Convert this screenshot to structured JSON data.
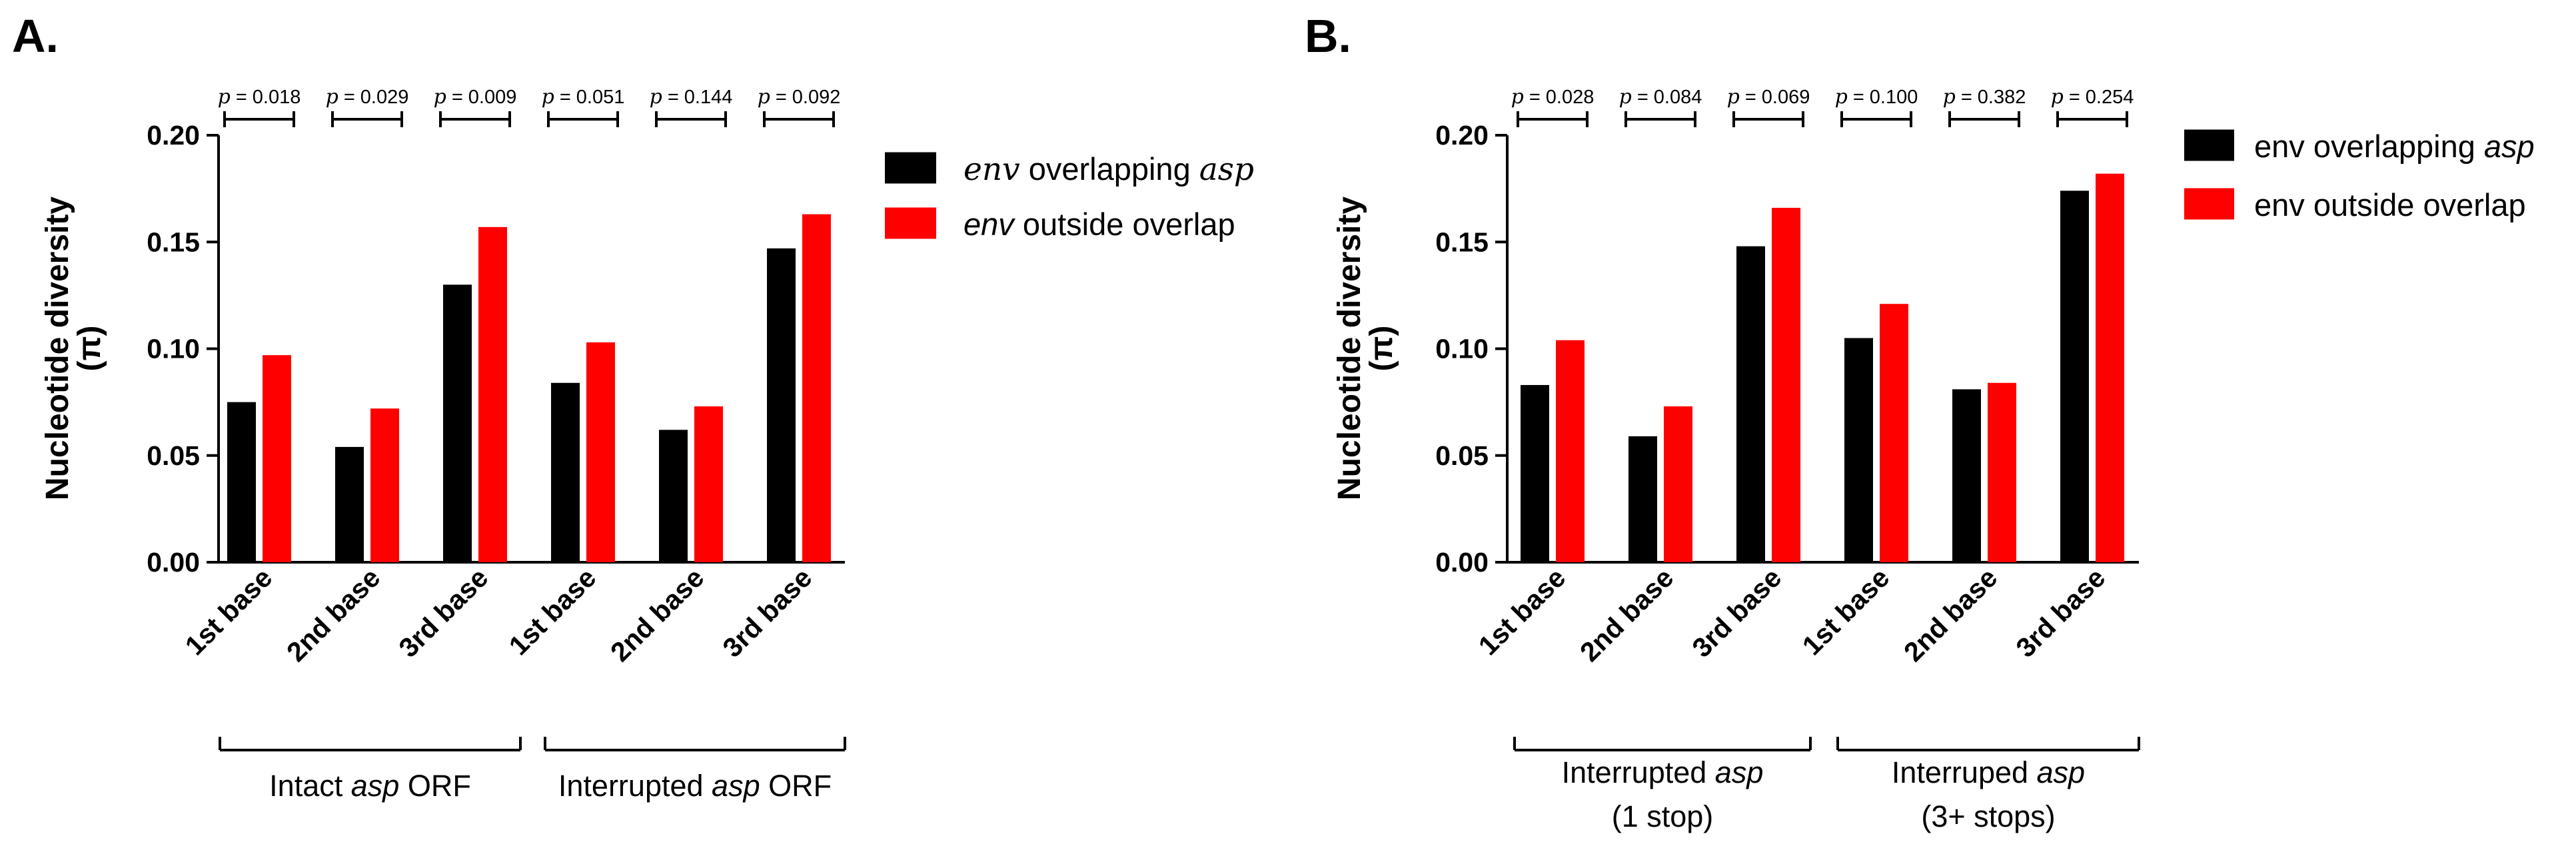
{
  "chart_data": [
    {
      "type": "bar",
      "panel": "A.",
      "ylabel_line1": "Nucleotide diversity",
      "ylabel_line2": "(π)",
      "ylim": [
        0,
        0.2
      ],
      "yticks": [
        "0.00",
        "0.05",
        "0.10",
        "0.15",
        "0.20"
      ],
      "categories": [
        "1st base",
        "2nd base",
        "3rd base",
        "1st base",
        "2nd base",
        "3rd base"
      ],
      "series": [
        {
          "name": "env overlapping asp",
          "color": "#000000",
          "values": [
            0.075,
            0.054,
            0.13,
            0.084,
            0.062,
            0.147
          ]
        },
        {
          "name": "env outside overlap",
          "color": "#ff0000",
          "values": [
            0.097,
            0.072,
            0.157,
            0.103,
            0.073,
            0.163
          ]
        }
      ],
      "legend": [
        {
          "parts": [
            {
              "text": "env",
              "style": "serif-ital"
            },
            {
              "text": " overlapping ",
              "style": ""
            },
            {
              "text": "asp",
              "style": "serif-ital"
            }
          ],
          "color": "#000000"
        },
        {
          "parts": [
            {
              "text": "env",
              "style": "ital"
            },
            {
              "text": " outside overlap",
              "style": ""
            }
          ],
          "color": "#ff0000"
        }
      ],
      "pvalues": [
        "= 0.018",
        "= 0.029",
        "= 0.009",
        "= 0.051",
        "= 0.144",
        "= 0.092"
      ],
      "p_symbol": "p",
      "groups": [
        {
          "lines": [
            [
              {
                "text": "Intact ",
                "style": ""
              },
              {
                "text": "asp",
                "style": "ital"
              },
              {
                "text": " ORF",
                "style": ""
              }
            ]
          ]
        },
        {
          "lines": [
            [
              {
                "text": "Interrupted ",
                "style": ""
              },
              {
                "text": "asp",
                "style": "ital"
              },
              {
                "text": " ORF",
                "style": ""
              }
            ]
          ]
        }
      ]
    },
    {
      "type": "bar",
      "panel": "B.",
      "ylabel_line1": "Nucleotide diversity",
      "ylabel_line2": "(π)",
      "ylim": [
        0,
        0.2
      ],
      "yticks": [
        "0.00",
        "0.05",
        "0.10",
        "0.15",
        "0.20"
      ],
      "categories": [
        "1st base",
        "2nd base",
        "3rd base",
        "1st base",
        "2nd base",
        "3rd base"
      ],
      "series": [
        {
          "name": "env overlapping asp",
          "color": "#000000",
          "values": [
            0.083,
            0.059,
            0.148,
            0.105,
            0.081,
            0.174
          ]
        },
        {
          "name": "env outside overlap",
          "color": "#ff0000",
          "values": [
            0.104,
            0.073,
            0.166,
            0.121,
            0.084,
            0.182
          ]
        }
      ],
      "legend": [
        {
          "parts": [
            {
              "text": "env overlapping ",
              "style": ""
            },
            {
              "text": "asp",
              "style": "ital"
            }
          ],
          "color": "#000000"
        },
        {
          "parts": [
            {
              "text": "env outside overlap",
              "style": ""
            }
          ],
          "color": "#ff0000"
        }
      ],
      "pvalues": [
        "= 0.028",
        "= 0.084",
        "= 0.069",
        "= 0.100",
        "= 0.382",
        "= 0.254"
      ],
      "p_symbol": "p",
      "groups": [
        {
          "lines": [
            [
              {
                "text": "Interrupted ",
                "style": ""
              },
              {
                "text": "asp",
                "style": "ital"
              }
            ],
            [
              {
                "text": "(1 stop)",
                "style": ""
              }
            ]
          ]
        },
        {
          "lines": [
            [
              {
                "text": "Interruped ",
                "style": ""
              },
              {
                "text": "asp",
                "style": "ital"
              }
            ],
            [
              {
                "text": "(3+ stops)",
                "style": ""
              }
            ]
          ]
        }
      ]
    }
  ]
}
